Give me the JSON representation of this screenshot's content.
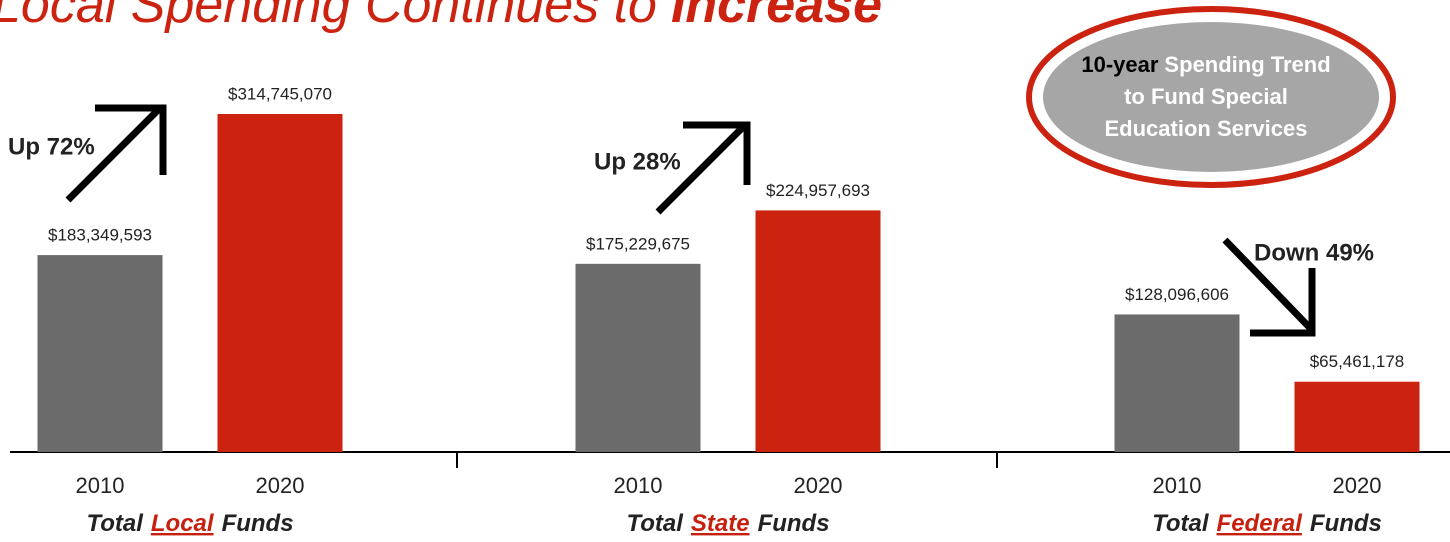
{
  "chart_data": {
    "type": "bar",
    "title": [
      "Local Spending Continues to",
      "Increase"
    ],
    "categories": [
      [
        "Total",
        "Local",
        "Funds"
      ],
      [
        "Total",
        "State",
        "Funds"
      ],
      [
        "Total",
        "Federal",
        "Funds"
      ]
    ],
    "series": [
      {
        "name": "2010",
        "color": "#6b6b6b",
        "values": [
          183349593,
          175229675,
          128096606
        ],
        "value_labels": [
          "$183,349,593",
          "$175,229,675",
          "$128,096,606"
        ]
      },
      {
        "name": "2020",
        "color": "#cc2210",
        "values": [
          314745070,
          224957693,
          65461178
        ],
        "value_labels": [
          "$314,745,070",
          "$224,957,693",
          "$65,461,178"
        ]
      }
    ],
    "annotations": [
      "Up 72%",
      "Up 28%",
      "Down 49%"
    ],
    "badge": {
      "lead": "10-year",
      "lines": [
        "Spending Trend",
        "to Fund Special",
        "Education Services"
      ]
    }
  }
}
